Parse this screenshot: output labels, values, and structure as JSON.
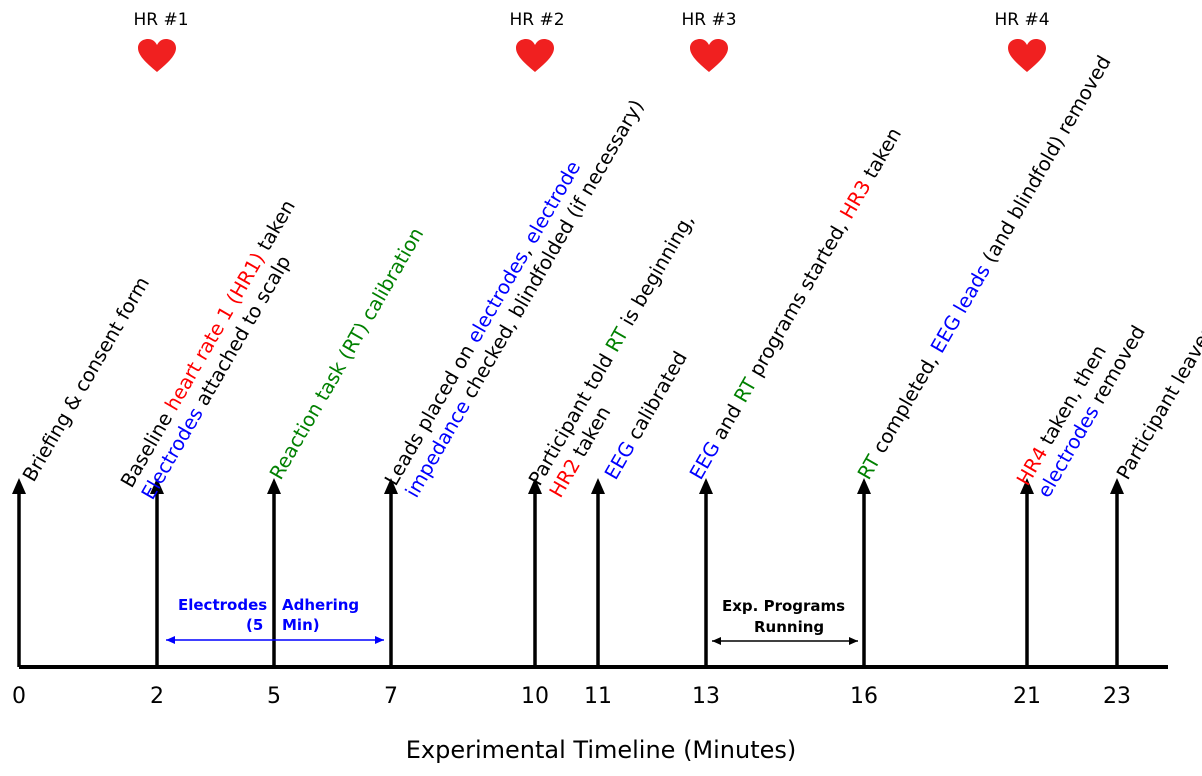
{
  "colors": {
    "black": "#000000",
    "red": "#ff0000",
    "blue": "#0000ff",
    "green": "#008000",
    "heart": "#f02020"
  },
  "timeline": {
    "xlabel": "Experimental Timeline (Minutes)",
    "ticks": [
      "0",
      "2",
      "5",
      "7",
      "10",
      "11",
      "13",
      "16",
      "21",
      "23"
    ]
  },
  "heart_rate": [
    {
      "label": "HR #1",
      "icon": "heart-icon"
    },
    {
      "label": "HR #2",
      "icon": "heart-icon"
    },
    {
      "label": "HR #3",
      "icon": "heart-icon"
    },
    {
      "label": "HR #4",
      "icon": "heart-icon"
    }
  ],
  "events": [
    {
      "lines": [
        [
          {
            "t": "Briefing & consent form",
            "c": "black"
          }
        ]
      ]
    },
    {
      "lines": [
        [
          {
            "t": "Baseline ",
            "c": "black"
          },
          {
            "t": "heart rate 1 (HR1)",
            "c": "red"
          },
          {
            "t": "  taken",
            "c": "black"
          }
        ],
        [
          {
            "t": "Electrodes",
            "c": "blue"
          },
          {
            "t": " attached to scalp",
            "c": "black"
          }
        ]
      ]
    },
    {
      "lines": [
        [
          {
            "t": "Reaction task (RT) calibration",
            "c": "green"
          }
        ]
      ]
    },
    {
      "lines": [
        [
          {
            "t": "Leads placed on ",
            "c": "black"
          },
          {
            "t": "electrodes",
            "c": "blue"
          },
          {
            "t": ", ",
            "c": "black"
          },
          {
            "t": "electrode",
            "c": "blue"
          }
        ],
        [
          {
            "t": "impedance",
            "c": "blue"
          },
          {
            "t": " checked, blindfolded (if necessary)",
            "c": "black"
          }
        ]
      ]
    },
    {
      "lines": [
        [
          {
            "t": "Participant told ",
            "c": "black"
          },
          {
            "t": "RT",
            "c": "green"
          },
          {
            "t": " is beginning,",
            "c": "black"
          }
        ],
        [
          {
            "t": "HR2",
            "c": "red"
          },
          {
            "t": " taken",
            "c": "black"
          }
        ]
      ]
    },
    {
      "lines": [
        [
          {
            "t": "EEG",
            "c": "blue"
          },
          {
            "t": " calibrated",
            "c": "black"
          }
        ]
      ]
    },
    {
      "lines": [
        [
          {
            "t": "EEG",
            "c": "blue"
          },
          {
            "t": " and ",
            "c": "black"
          },
          {
            "t": "RT",
            "c": "green"
          },
          {
            "t": " programs started, ",
            "c": "black"
          },
          {
            "t": "HR3",
            "c": "red"
          },
          {
            "t": " taken",
            "c": "black"
          }
        ]
      ]
    },
    {
      "lines": [
        [
          {
            "t": "RT",
            "c": "green"
          },
          {
            "t": " completed, ",
            "c": "black"
          },
          {
            "t": "EEG leads",
            "c": "blue"
          },
          {
            "t": " (and blindfold) removed",
            "c": "black"
          }
        ]
      ]
    },
    {
      "lines": [
        [
          {
            "t": "HR4",
            "c": "red"
          },
          {
            "t": " taken, then",
            "c": "black"
          }
        ],
        [
          {
            "t": "electrodes",
            "c": "blue"
          },
          {
            "t": " removed",
            "c": "black"
          }
        ]
      ]
    },
    {
      "lines": [
        [
          {
            "t": "Participant leaves",
            "c": "black"
          }
        ]
      ]
    }
  ],
  "periods": [
    {
      "label_left": "Electrodes",
      "label_right": "Adhering",
      "label_left2": "(5",
      "label_right2": "Min)",
      "from": "2",
      "to": "7",
      "color": "blue"
    },
    {
      "label_line1": "Exp. Programs",
      "label_line2": "Running",
      "from": "13",
      "to": "16",
      "color": "black"
    }
  ]
}
